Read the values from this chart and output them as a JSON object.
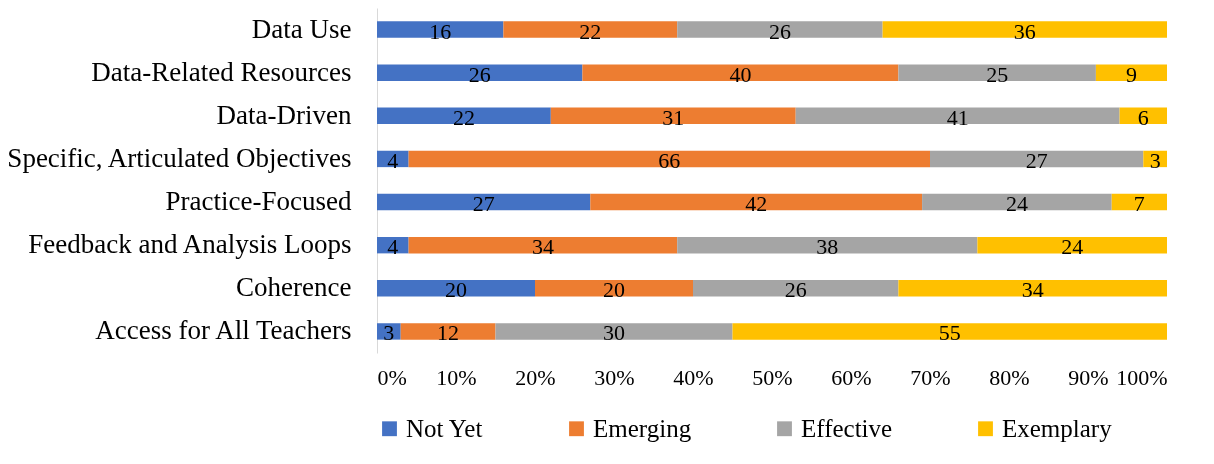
{
  "chart_data": {
    "type": "bar",
    "orientation": "horizontal",
    "stacked": true,
    "data_labels": true,
    "legend": "bottom",
    "grid": false,
    "categories": [
      "Data Use",
      "Data-Related Resources",
      "Data-Driven",
      "Specific, Articulated Objectives",
      "Practice-Focused",
      "Feedback and Analysis Loops",
      "Coherence",
      "Access for All Teachers"
    ],
    "series": [
      {
        "name": "Not Yet",
        "color": "#4472c4",
        "values": [
          16,
          26,
          22,
          4,
          27,
          4,
          20,
          3
        ]
      },
      {
        "name": "Emerging",
        "color": "#ed7d31",
        "values": [
          22,
          40,
          31,
          66,
          42,
          34,
          20,
          12
        ]
      },
      {
        "name": "Effective",
        "color": "#a5a5a5",
        "values": [
          26,
          25,
          41,
          27,
          24,
          38,
          26,
          30
        ]
      },
      {
        "name": "Exemplary",
        "color": "#ffc000",
        "values": [
          36,
          9,
          6,
          3,
          7,
          24,
          34,
          55
        ]
      }
    ],
    "xlim": [
      0,
      100
    ],
    "xticks": [
      {
        "value": 0,
        "label": "0%"
      },
      {
        "value": 10,
        "label": "10%"
      },
      {
        "value": 20,
        "label": "20%"
      },
      {
        "value": 30,
        "label": "30%"
      },
      {
        "value": 40,
        "label": "40%"
      },
      {
        "value": 50,
        "label": "50%"
      },
      {
        "value": 60,
        "label": "60%"
      },
      {
        "value": 70,
        "label": "70%"
      },
      {
        "value": 80,
        "label": "80%"
      },
      {
        "value": 90,
        "label": "90%"
      },
      {
        "value": 100,
        "label": "100%"
      }
    ]
  }
}
